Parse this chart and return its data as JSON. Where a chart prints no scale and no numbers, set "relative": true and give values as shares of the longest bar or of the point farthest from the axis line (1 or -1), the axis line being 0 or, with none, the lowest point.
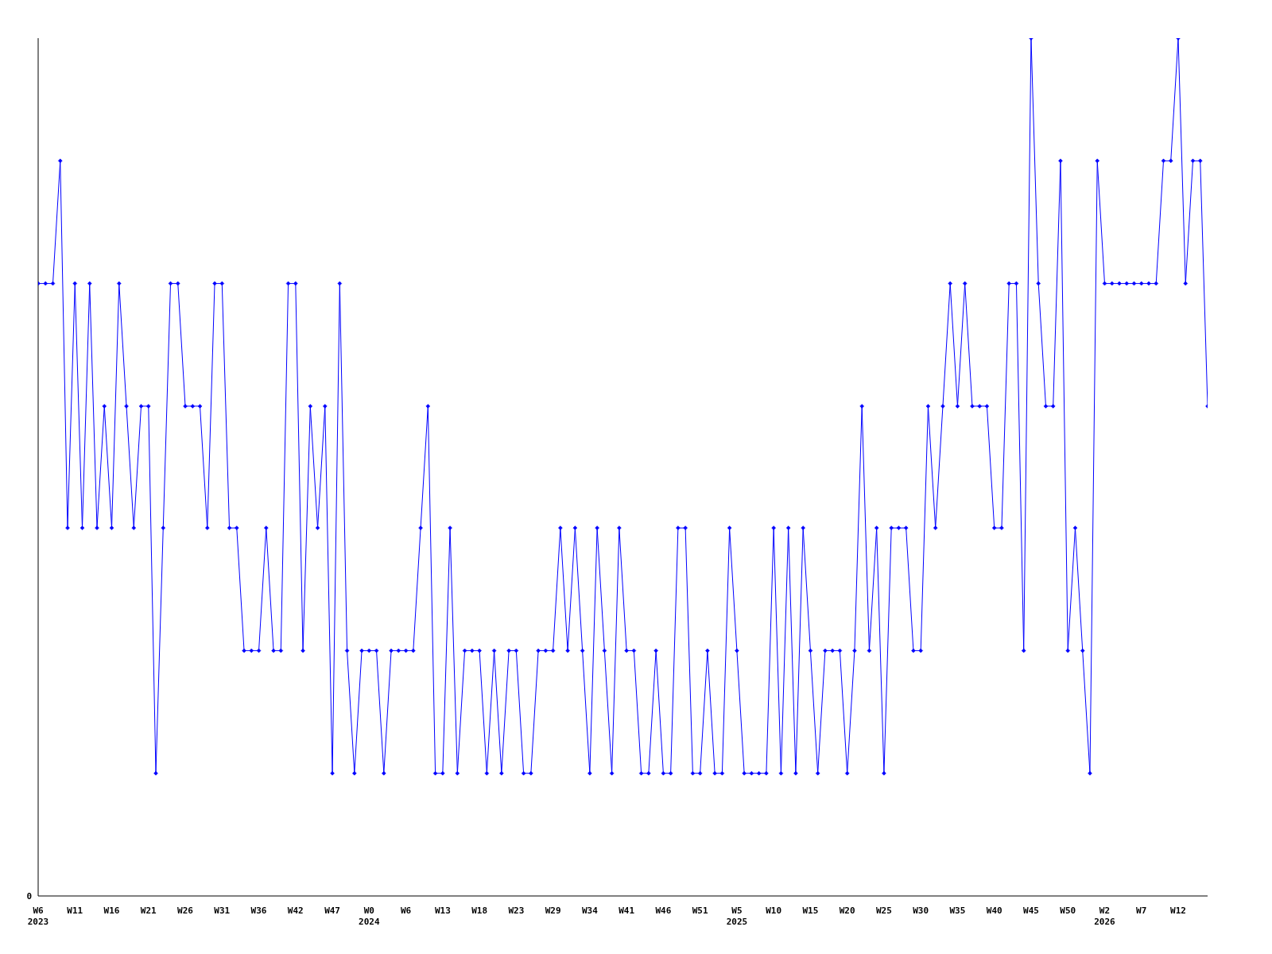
{
  "chart_data": {
    "type": "line",
    "relative": true,
    "color": "#0000ff",
    "marker": "diamond",
    "annotations": [
      "0"
    ],
    "categories": [
      "W6\n2023",
      null,
      null,
      null,
      null,
      "W11",
      null,
      null,
      null,
      null,
      "W16",
      null,
      null,
      null,
      null,
      "W21",
      null,
      null,
      null,
      null,
      "W26",
      null,
      null,
      null,
      null,
      "W31",
      null,
      null,
      null,
      null,
      "W36",
      null,
      null,
      null,
      null,
      "W42",
      null,
      null,
      null,
      null,
      "W47",
      null,
      null,
      null,
      null,
      "W0\n2024",
      null,
      null,
      null,
      null,
      "W6",
      null,
      null,
      null,
      null,
      "W13",
      null,
      null,
      null,
      null,
      "W18",
      null,
      null,
      null,
      null,
      "W23",
      null,
      null,
      null,
      null,
      "W29",
      null,
      null,
      null,
      null,
      "W34",
      null,
      null,
      null,
      null,
      "W41",
      null,
      null,
      null,
      null,
      "W46",
      null,
      null,
      null,
      null,
      "W51",
      null,
      null,
      null,
      null,
      "W5\n2025",
      null,
      null,
      null,
      null,
      "W10",
      null,
      null,
      null,
      null,
      "W15",
      null,
      null,
      null,
      null,
      "W20",
      null,
      null,
      null,
      null,
      "W25",
      null,
      null,
      null,
      null,
      "W30",
      null,
      null,
      null,
      null,
      "W35",
      null,
      null,
      null,
      null,
      "W40",
      null,
      null,
      null,
      null,
      "W45",
      null,
      null,
      null,
      null,
      "W50",
      null,
      null,
      null,
      null,
      "W2\n2026",
      null,
      null,
      null,
      null,
      "W7",
      null,
      null,
      null,
      null,
      "W12",
      null,
      null,
      null,
      null
    ],
    "values": [
      0.714,
      0.714,
      0.714,
      0.857,
      0.429,
      0.714,
      0.429,
      0.714,
      0.429,
      0.571,
      0.429,
      0.714,
      0.571,
      0.429,
      0.571,
      0.571,
      0.143,
      0.429,
      0.714,
      0.714,
      0.571,
      0.571,
      0.571,
      0.429,
      0.714,
      0.714,
      0.429,
      0.429,
      0.286,
      0.286,
      0.286,
      0.429,
      0.286,
      0.286,
      0.714,
      0.714,
      0.286,
      0.571,
      0.429,
      0.571,
      0.143,
      0.714,
      0.286,
      0.143,
      0.286,
      0.286,
      0.286,
      0.143,
      0.286,
      0.286,
      0.286,
      0.286,
      0.429,
      0.571,
      0.143,
      0.143,
      0.429,
      0.143,
      0.286,
      0.286,
      0.286,
      0.143,
      0.286,
      0.143,
      0.286,
      0.286,
      0.143,
      0.143,
      0.286,
      0.286,
      0.286,
      0.429,
      0.286,
      0.429,
      0.286,
      0.143,
      0.429,
      0.286,
      0.143,
      0.429,
      0.286,
      0.286,
      0.143,
      0.143,
      0.286,
      0.143,
      0.143,
      0.429,
      0.429,
      0.143,
      0.143,
      0.286,
      0.143,
      0.143,
      0.429,
      0.286,
      0.143,
      0.143,
      0.143,
      0.143,
      0.429,
      0.143,
      0.429,
      0.143,
      0.429,
      0.286,
      0.143,
      0.286,
      0.286,
      0.286,
      0.143,
      0.286,
      0.571,
      0.286,
      0.429,
      0.143,
      0.429,
      0.429,
      0.429,
      0.286,
      0.286,
      0.571,
      0.429,
      0.571,
      0.714,
      0.571,
      0.714,
      0.571,
      0.571,
      0.571,
      0.429,
      0.429,
      0.714,
      0.714,
      0.286,
      1,
      0.714,
      0.571,
      0.571,
      0.857,
      0.286,
      0.429,
      0.286,
      0.143,
      0.857,
      0.714,
      0.714,
      0.714,
      0.714,
      0.714,
      0.714,
      0.714,
      0.714,
      0.857,
      0.857,
      1,
      0.714,
      0.857,
      0.857,
      0.571
    ]
  }
}
